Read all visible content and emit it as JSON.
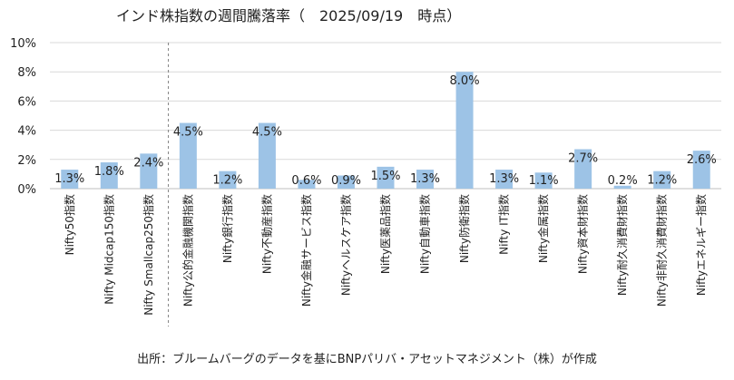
{
  "chart_data": {
    "type": "bar",
    "title": "インド株指数の週間騰落率（　2025/09/19　時点）",
    "categories": [
      "Nifty50指数",
      "Nifty Midcap150指数",
      "Nifty Smallcap250指数",
      "Nifty公的金融機関指数",
      "Nifty銀行指数",
      "Nifty不動産指数",
      "Nifty金融サービス指数",
      "Niftyヘルスケア指数",
      "Nifty医薬品指数",
      "Nifty自動車指数",
      "Nifty防衛指数",
      "Nifty IT指数",
      "Nifty金属指数",
      "Nifty資本財指数",
      "Nifty耐久消費財指数",
      "Nifty非耐久消費財指数",
      "Niftyエネルギー指数"
    ],
    "values": [
      1.3,
      1.8,
      2.4,
      4.5,
      1.2,
      4.5,
      0.6,
      0.9,
      1.5,
      1.3,
      8.0,
      1.3,
      1.1,
      2.7,
      0.2,
      1.2,
      2.6
    ],
    "labels": [
      "1.3%",
      "1.8%",
      "2.4%",
      "4.5%",
      "1.2%",
      "4.5%",
      "0.6%",
      "0.9%",
      "1.5%",
      "1.3%",
      "8.0%",
      "1.3%",
      "1.1%",
      "2.7%",
      "0.2%",
      "1.2%",
      "2.6%"
    ],
    "yticks": [
      "0%",
      "2%",
      "4%",
      "6%",
      "8%",
      "10%"
    ],
    "ylim": [
      0,
      10
    ],
    "grid": true,
    "separator_after_index": 2,
    "bar_color": "#9dc3e6",
    "grid_color": "#d9d9d9",
    "source": "出所：ブルームバーグのデータを基にBNPパリバ・アセットマネジメント（株）が作成"
  }
}
